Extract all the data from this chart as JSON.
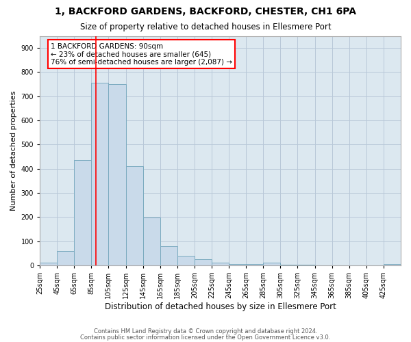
{
  "title": "1, BACKFORD GARDENS, BACKFORD, CHESTER, CH1 6PA",
  "subtitle": "Size of property relative to detached houses in Ellesmere Port",
  "xlabel": "Distribution of detached houses by size in Ellesmere Port",
  "ylabel": "Number of detached properties",
  "bar_color": "#c9daea",
  "bar_edge_color": "#7aaabf",
  "grid_color": "#b8c8d8",
  "background_color": "#dce8f0",
  "property_line_x": 90,
  "property_line_color": "red",
  "annotation_text": "1 BACKFORD GARDENS: 90sqm\n← 23% of detached houses are smaller (645)\n76% of semi-detached houses are larger (2,087) →",
  "footer_line1": "Contains HM Land Registry data © Crown copyright and database right 2024.",
  "footer_line2": "Contains public sector information licensed under the Open Government Licence v3.0.",
  "bin_edges": [
    25,
    45,
    65,
    85,
    105,
    125,
    145,
    165,
    185,
    205,
    225,
    245,
    265,
    285,
    305,
    325,
    345,
    365,
    385,
    405,
    425,
    445
  ],
  "values": [
    10,
    60,
    435,
    755,
    750,
    410,
    197,
    78,
    40,
    25,
    10,
    6,
    5,
    10,
    3,
    2,
    1,
    1,
    1,
    1,
    5
  ],
  "ylim": [
    0,
    950
  ],
  "yticks": [
    0,
    100,
    200,
    300,
    400,
    500,
    600,
    700,
    800,
    900
  ],
  "xtick_labels": [
    "25sqm",
    "45sqm",
    "65sqm",
    "85sqm",
    "105sqm",
    "125sqm",
    "145sqm",
    "165sqm",
    "185sqm",
    "205sqm",
    "225sqm",
    "245sqm",
    "265sqm",
    "285sqm",
    "305sqm",
    "325sqm",
    "345sqm",
    "365sqm",
    "385sqm",
    "405sqm",
    "425sqm"
  ],
  "figsize": [
    6.0,
    5.0
  ],
  "dpi": 100
}
